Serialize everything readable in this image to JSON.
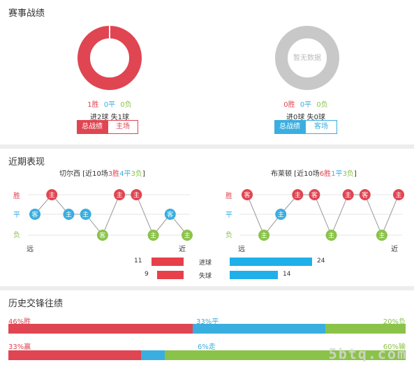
{
  "colors": {
    "win": "#e04552",
    "draw": "#3aaedf",
    "loss": "#8bc34a",
    "neutral": "#c8c8c8"
  },
  "record": {
    "title": "赛事战绩",
    "teams": [
      {
        "win": "1胜",
        "draw": "0平",
        "loss": "0负",
        "goals": "进2球 失1球",
        "donut_center": "",
        "btn_total": "总战绩",
        "btn_venue": "主场",
        "theme": "red",
        "win_share": 1.0
      },
      {
        "win": "0胜",
        "draw": "0平",
        "loss": "0负",
        "goals": "进0球 失0球",
        "donut_center": "暂无数据",
        "btn_total": "总战绩",
        "btn_venue": "客场",
        "theme": "blue",
        "win_share": 0
      }
    ]
  },
  "recent": {
    "title": "近期表现",
    "teams": [
      {
        "name": "切尔西",
        "summary_pre": " [近10场",
        "w": "3胜",
        "d": "4平",
        "l": "3负",
        "summary_post": "]",
        "y_win": "胜",
        "y_draw": "平",
        "y_loss": "负",
        "x_far": "远",
        "x_near": "近",
        "matches": [
          {
            "venue": "客",
            "result": "D"
          },
          {
            "venue": "主",
            "result": "W"
          },
          {
            "venue": "主",
            "result": "D"
          },
          {
            "venue": "主",
            "result": "D"
          },
          {
            "venue": "客",
            "result": "L"
          },
          {
            "venue": "主",
            "result": "W"
          },
          {
            "venue": "主",
            "result": "W"
          },
          {
            "venue": "主",
            "result": "L"
          },
          {
            "venue": "客",
            "result": "D"
          },
          {
            "venue": "主",
            "result": "L"
          }
        ]
      },
      {
        "name": "布莱顿",
        "summary_pre": " [近10场",
        "w": "6胜",
        "d": "1平",
        "l": "3负",
        "summary_post": "]",
        "y_win": "胜",
        "y_draw": "平",
        "y_loss": "负",
        "x_far": "远",
        "x_near": "近",
        "matches": [
          {
            "venue": "客",
            "result": "W"
          },
          {
            "venue": "主",
            "result": "L"
          },
          {
            "venue": "主",
            "result": "D"
          },
          {
            "venue": "主",
            "result": "W"
          },
          {
            "venue": "客",
            "result": "W"
          },
          {
            "venue": "主",
            "result": "L"
          },
          {
            "venue": "主",
            "result": "W"
          },
          {
            "venue": "客",
            "result": "W"
          },
          {
            "venue": "主",
            "result": "L"
          },
          {
            "venue": "主",
            "result": "W"
          }
        ]
      }
    ],
    "goals": {
      "label": "进球",
      "left": 11,
      "right": 24
    },
    "conceded": {
      "label": "失球",
      "left": 9,
      "right": 14
    }
  },
  "history": {
    "title": "历史交锋往绩",
    "row1": {
      "win": "46%胜",
      "draw": "33%平",
      "loss": "20%负",
      "win_pct": 46,
      "draw_pct": 33,
      "loss_pct": 20
    },
    "row2": {
      "win": "33%赢",
      "draw": "6%走",
      "loss": "60%输",
      "win_pct": 33,
      "draw_pct": 6,
      "loss_pct": 60
    },
    "watermark": "5btq.com"
  }
}
